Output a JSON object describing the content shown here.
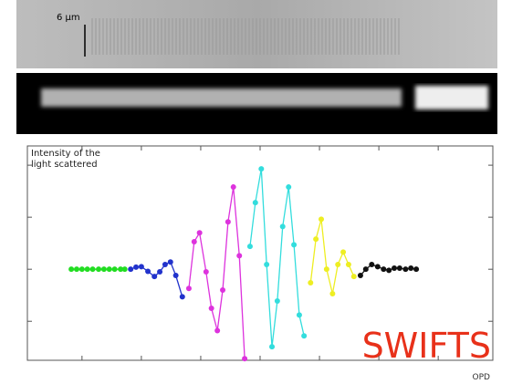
{
  "image": {
    "scale_label": "6 µm"
  },
  "chart_data": {
    "type": "line",
    "y_label": "Intensity of the light scattered",
    "x_label": "OPD",
    "annotation": "SWIFTS",
    "xlim": [
      0.08,
      7.92
    ],
    "ylim": [
      -1.75,
      2.37
    ],
    "xticks": [
      1,
      2,
      3,
      4,
      5,
      6,
      7
    ],
    "yticks": [
      -1,
      0,
      1,
      2
    ],
    "series": [
      {
        "color": "#22dd22",
        "x": [
          0.82,
          0.91,
          1.0,
          1.09,
          1.18,
          1.28,
          1.37,
          1.46,
          1.55,
          1.65,
          1.72
        ],
        "values": [
          0,
          0,
          0,
          0,
          0,
          0,
          0,
          0,
          0,
          0,
          0
        ]
      },
      {
        "color": "#2233cc",
        "x": [
          1.82,
          1.91,
          2.0,
          2.11,
          2.22,
          2.31,
          2.4,
          2.49,
          2.58,
          2.69
        ],
        "values": [
          0,
          0.04,
          0.05,
          -0.04,
          -0.14,
          -0.05,
          0.09,
          0.14,
          -0.12,
          -0.53
        ]
      },
      {
        "color": "#dd33dd",
        "x": [
          2.8,
          2.89,
          2.98,
          3.09,
          3.18,
          3.28,
          3.37,
          3.46,
          3.55,
          3.65,
          3.74
        ],
        "values": [
          -0.37,
          0.53,
          0.7,
          -0.05,
          -0.75,
          -1.18,
          -0.4,
          0.91,
          1.58,
          0.26,
          -1.72
        ]
      },
      {
        "color": "#33dddd",
        "x": [
          3.83,
          3.92,
          4.02,
          4.11,
          4.2,
          4.29,
          4.38,
          4.48,
          4.57,
          4.66,
          4.74
        ],
        "values": [
          0.44,
          1.28,
          1.93,
          0.09,
          -1.49,
          -0.61,
          0.82,
          1.58,
          0.47,
          -0.88,
          -1.28
        ]
      },
      {
        "color": "#eeee22",
        "x": [
          4.85,
          4.94,
          5.03,
          5.12,
          5.22,
          5.31,
          5.4,
          5.49,
          5.58
        ],
        "values": [
          -0.26,
          0.58,
          0.96,
          0,
          -0.47,
          0.09,
          0.33,
          0.09,
          -0.14
        ]
      },
      {
        "color": "#111111",
        "x": [
          5.69,
          5.78,
          5.88,
          5.98,
          6.08,
          6.17,
          6.26,
          6.35,
          6.45,
          6.54,
          6.63
        ],
        "values": [
          -0.12,
          0,
          0.09,
          0.05,
          0,
          -0.02,
          0.02,
          0.02,
          0,
          0.02,
          0
        ]
      }
    ]
  }
}
